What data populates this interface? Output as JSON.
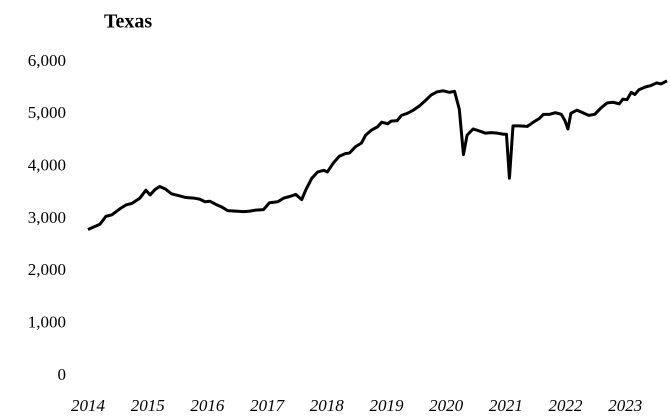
{
  "chart_data": {
    "type": "line",
    "title": "Texas",
    "x": [
      2014.0,
      2014.2,
      2014.3,
      2014.4,
      2014.54,
      2014.64,
      2014.74,
      2014.87,
      2014.97,
      2015.04,
      2015.12,
      2015.2,
      2015.3,
      2015.4,
      2015.54,
      2015.64,
      2015.77,
      2015.87,
      2015.96,
      2016.04,
      2016.14,
      2016.24,
      2016.34,
      2016.47,
      2016.61,
      2016.71,
      2016.81,
      2016.94,
      2017.04,
      2017.18,
      2017.28,
      2017.38,
      2017.48,
      2017.58,
      2017.65,
      2017.75,
      2017.85,
      2017.95,
      2018.01,
      2018.11,
      2018.21,
      2018.31,
      2018.38,
      2018.48,
      2018.58,
      2018.65,
      2018.75,
      2018.85,
      2018.92,
      2019.02,
      2019.08,
      2019.18,
      2019.25,
      2019.35,
      2019.45,
      2019.55,
      2019.65,
      2019.75,
      2019.85,
      2019.95,
      2020.05,
      2020.14,
      2020.22,
      2020.29,
      2020.35,
      2020.45,
      2020.56,
      2020.66,
      2020.76,
      2020.86,
      2020.96,
      2021.01,
      2021.06,
      2021.12,
      2021.22,
      2021.36,
      2021.46,
      2021.56,
      2021.63,
      2021.73,
      2021.83,
      2021.93,
      2021.99,
      2022.04,
      2022.09,
      2022.19,
      2022.29,
      2022.39,
      2022.49,
      2022.6,
      2022.7,
      2022.8,
      2022.9,
      2022.96,
      2023.03,
      2023.1,
      2023.16,
      2023.23,
      2023.33,
      2023.43,
      2023.53,
      2023.6,
      2023.7
    ],
    "series": [
      {
        "color": "#000000",
        "values": [
          2800,
          2900,
          3050,
          3080,
          3200,
          3270,
          3300,
          3400,
          3550,
          3460,
          3560,
          3620,
          3570,
          3480,
          3440,
          3410,
          3400,
          3380,
          3330,
          3340,
          3280,
          3230,
          3160,
          3150,
          3140,
          3150,
          3170,
          3180,
          3310,
          3330,
          3400,
          3430,
          3470,
          3370,
          3560,
          3780,
          3900,
          3930,
          3900,
          4070,
          4200,
          4250,
          4260,
          4380,
          4450,
          4600,
          4700,
          4760,
          4850,
          4820,
          4870,
          4880,
          4980,
          5020,
          5080,
          5160,
          5260,
          5370,
          5430,
          5450,
          5420,
          5440,
          5100,
          4230,
          4600,
          4720,
          4680,
          4640,
          4650,
          4640,
          4620,
          4620,
          3780,
          4780,
          4780,
          4770,
          4850,
          4920,
          5000,
          5000,
          5030,
          5000,
          4880,
          4720,
          5020,
          5080,
          5030,
          4980,
          5000,
          5130,
          5220,
          5230,
          5200,
          5290,
          5280,
          5420,
          5380,
          5470,
          5520,
          5550,
          5600,
          5580,
          5640
        ]
      }
    ],
    "xlim": [
      2014,
      2023.75
    ],
    "xticks": [
      2014,
      2015,
      2016,
      2017,
      2018,
      2019,
      2020,
      2021,
      2022,
      2023
    ],
    "ylim": [
      0,
      6000
    ],
    "yticks": [
      0,
      {
        "value": 1000,
        "label": "1,000"
      },
      {
        "value": 2000,
        "label": "2,000"
      },
      {
        "value": 3000,
        "label": "3,000"
      },
      {
        "value": 4000,
        "label": "4,000"
      },
      {
        "value": 5000,
        "label": "5,000"
      },
      {
        "value": 6000,
        "label": "6,000"
      }
    ],
    "grid": false
  }
}
